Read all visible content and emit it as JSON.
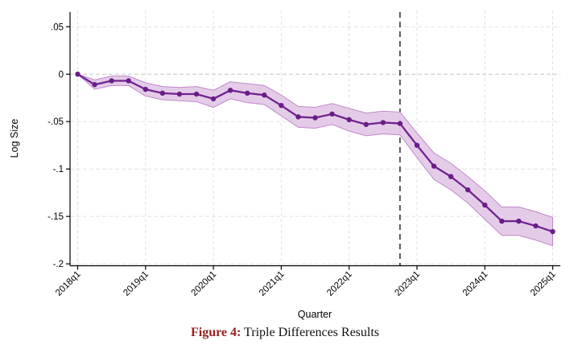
{
  "figure": {
    "caption_label": "Figure 4:",
    "caption_title": " Triple Differences Results"
  },
  "chart_data": {
    "type": "line",
    "title": "",
    "xlabel": "Quarter",
    "ylabel": "Log Size",
    "legend": "none",
    "grid": true,
    "x": [
      "2018q1",
      "2018q2",
      "2018q3",
      "2018q4",
      "2019q1",
      "2019q2",
      "2019q3",
      "2019q4",
      "2020q1",
      "2020q2",
      "2020q3",
      "2020q4",
      "2021q1",
      "2021q2",
      "2021q3",
      "2021q4",
      "2022q1",
      "2022q2",
      "2022q3",
      "2022q4",
      "2023q1",
      "2023q2",
      "2023q3",
      "2023q4",
      "2024q1",
      "2024q2",
      "2024q3",
      "2024q4",
      "2025q1"
    ],
    "series": [
      {
        "name": "Triple-differences estimate",
        "values": [
          0.0,
          -0.011,
          -0.007,
          -0.007,
          -0.016,
          -0.02,
          -0.021,
          -0.021,
          -0.026,
          -0.017,
          -0.02,
          -0.022,
          -0.033,
          -0.045,
          -0.046,
          -0.042,
          -0.048,
          -0.053,
          -0.051,
          -0.052,
          -0.075,
          -0.097,
          -0.108,
          -0.122,
          -0.138,
          -0.155,
          -0.155,
          -0.16,
          -0.166
        ]
      }
    ],
    "ci_upper": [
      0.0,
      -0.006,
      -0.002,
      -0.002,
      -0.009,
      -0.013,
      -0.014,
      -0.013,
      -0.017,
      -0.008,
      -0.01,
      -0.012,
      -0.022,
      -0.034,
      -0.035,
      -0.031,
      -0.036,
      -0.041,
      -0.039,
      -0.04,
      -0.062,
      -0.083,
      -0.094,
      -0.108,
      -0.123,
      -0.14,
      -0.14,
      -0.145,
      -0.151
    ],
    "ci_lower": [
      0.0,
      -0.016,
      -0.012,
      -0.012,
      -0.023,
      -0.027,
      -0.028,
      -0.029,
      -0.035,
      -0.026,
      -0.03,
      -0.032,
      -0.044,
      -0.056,
      -0.057,
      -0.053,
      -0.06,
      -0.065,
      -0.063,
      -0.064,
      -0.088,
      -0.111,
      -0.122,
      -0.136,
      -0.153,
      -0.17,
      -0.17,
      -0.175,
      -0.181
    ],
    "x_tick_labels": [
      "2018q1",
      "2019q1",
      "2020q1",
      "2021q1",
      "2022q1",
      "2023q1",
      "2024q1",
      "2025q1"
    ],
    "y_tick_labels": [
      ".05",
      "0",
      "-.05",
      "-.1",
      "-.15",
      "-.2"
    ],
    "y_tick_values": [
      0.05,
      0,
      -0.05,
      -0.1,
      -0.15,
      -0.2
    ],
    "vline_at": "2022q4",
    "ylim": [
      -0.202,
      0.0655
    ],
    "x_pad": 0.45,
    "colors": {
      "line": "#71228f",
      "marker": "#6a1d87",
      "ci_fill": "#e3c9e7",
      "ci_edge": "#c189cb",
      "grid": "#e2e2e2",
      "zero_grid": "#c6c6c6",
      "axis": "#000000",
      "vline": "#1a1a1a",
      "caption_label_color": "#992222"
    }
  }
}
